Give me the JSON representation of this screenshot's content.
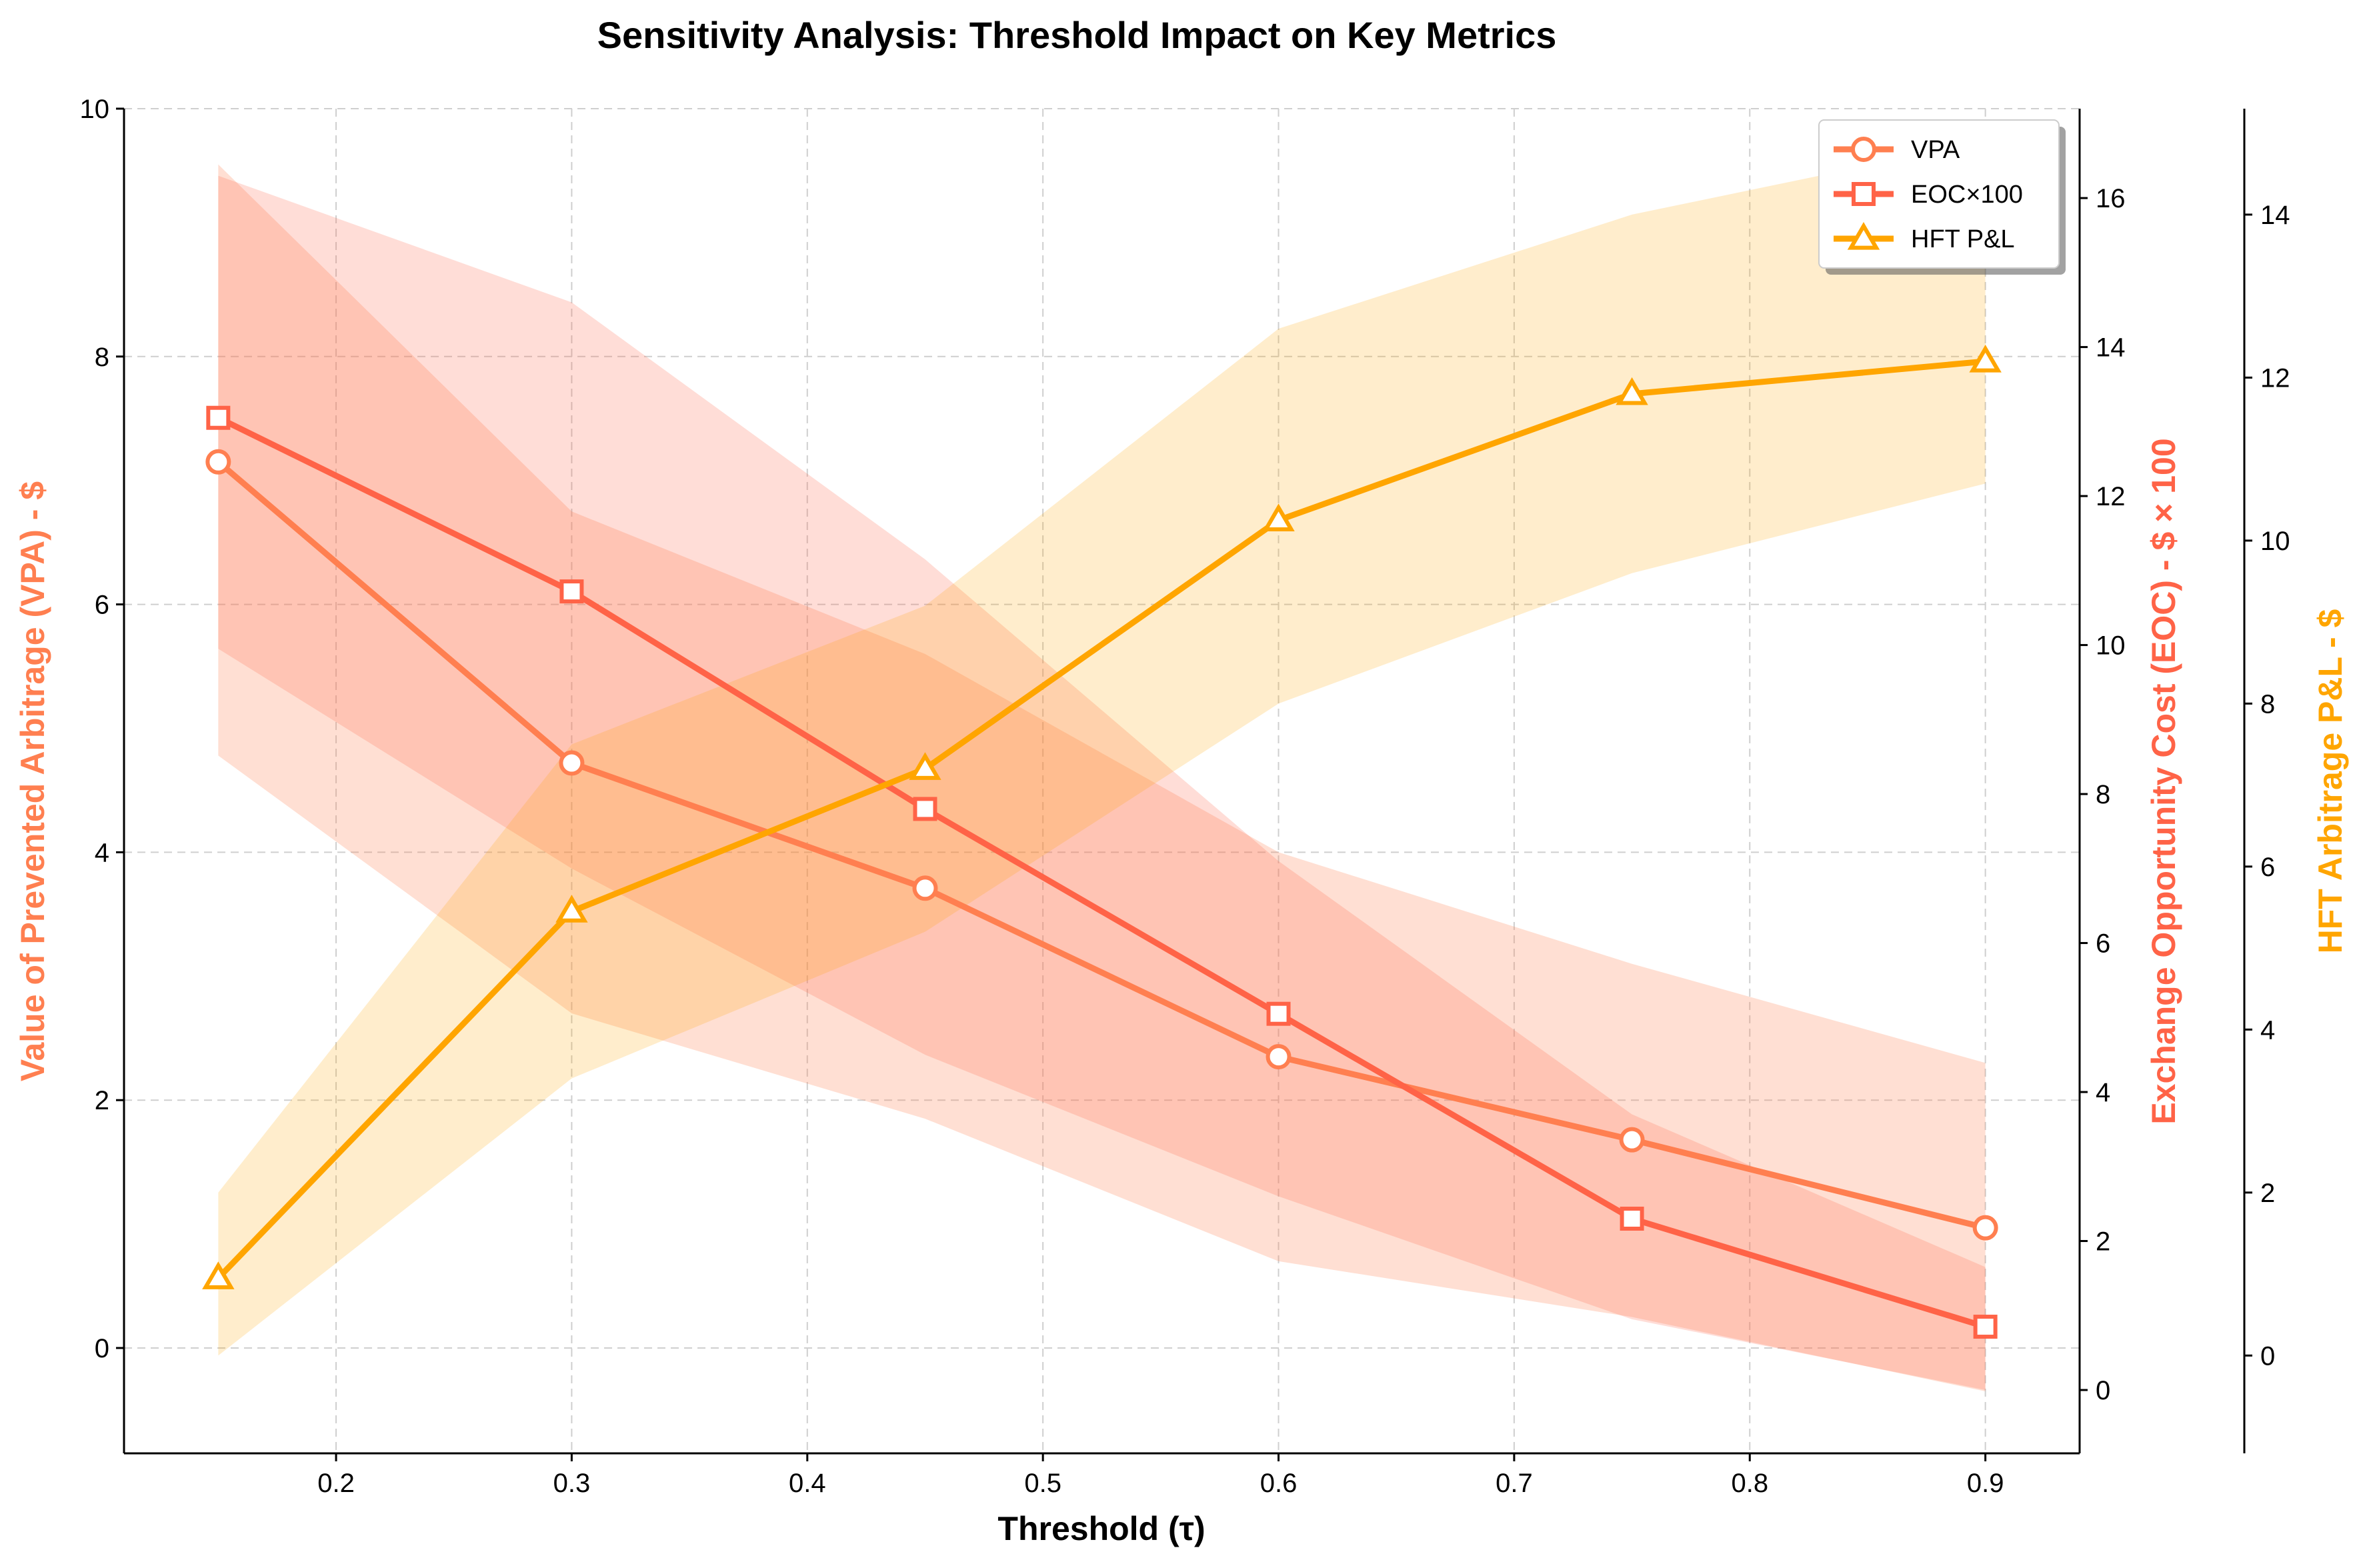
{
  "chart_data": {
    "type": "line",
    "title": "Sensitivity Analysis: Threshold Impact on Key Metrics",
    "xlabel": "Threshold (τ)",
    "x": [
      0.15,
      0.3,
      0.45,
      0.6,
      0.75,
      0.9
    ],
    "xlim": [
      0.11,
      0.94
    ],
    "xticks": [
      0.2,
      0.3,
      0.4,
      0.5,
      0.6,
      0.7,
      0.8,
      0.9
    ],
    "grid": true,
    "legend_position": "top-right",
    "axes": {
      "left": {
        "label": "Value of Prevented Arbitrage (VPA) - $",
        "color": "#FF7F50",
        "ylim": [
          -0.85,
          10.0
        ],
        "ticks": [
          0,
          2,
          4,
          6,
          8,
          10
        ]
      },
      "right": {
        "label": "Exchange Opportunity Cost (EOC) - $ × 100",
        "color": "#FF6347",
        "ylim": [
          -0.85,
          17.2
        ],
        "ticks": [
          0,
          2,
          4,
          6,
          8,
          10,
          12,
          14,
          16
        ]
      },
      "right2": {
        "label": "HFT Arbitrage P&L - $",
        "color": "#FFA500",
        "ylim": [
          -1.2,
          15.3
        ],
        "ticks": [
          0,
          2,
          4,
          6,
          8,
          10,
          12,
          14
        ]
      }
    },
    "series": [
      {
        "name": "VPA",
        "axis": "left",
        "color": "#FF7F50",
        "marker": "circle",
        "values": [
          7.15,
          4.72,
          3.71,
          2.35,
          1.68,
          0.97
        ],
        "lower": [
          4.78,
          2.7,
          1.85,
          0.7,
          0.25,
          -0.35
        ],
        "upper": [
          9.55,
          6.75,
          5.6,
          4.0,
          3.1,
          2.3
        ]
      },
      {
        "name": "EOC×100",
        "axis": "right",
        "color": "#FF6347",
        "marker": "square",
        "values": [
          13.05,
          10.72,
          7.8,
          5.05,
          2.3,
          0.85
        ],
        "lower": [
          9.95,
          7.0,
          4.5,
          2.6,
          0.95,
          0.0
        ],
        "upper": [
          16.3,
          14.6,
          11.15,
          7.1,
          3.7,
          1.65
        ]
      },
      {
        "name": "HFT P&L",
        "axis": "right2",
        "color": "#FFA500",
        "marker": "triangle",
        "values": [
          0.95,
          5.45,
          7.2,
          10.25,
          11.8,
          12.2
        ],
        "lower": [
          0.0,
          3.4,
          5.2,
          8.0,
          9.6,
          10.7
        ],
        "upper": [
          2.0,
          7.5,
          9.2,
          12.6,
          14.0,
          14.9
        ]
      }
    ]
  }
}
